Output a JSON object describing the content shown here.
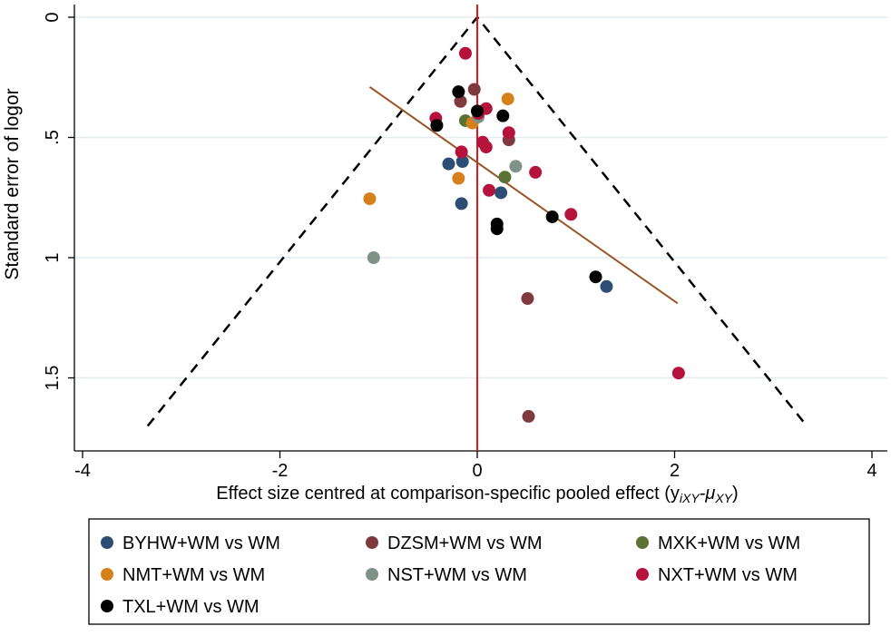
{
  "chart_data": {
    "type": "scatter",
    "title": "",
    "xlabel": "Effect size centred at comparison-specific pooled effect (y",
    "xlabel_sub": "iXY",
    "xlabel_tail": "-μ",
    "xlabel_sub2": "XY",
    "xlabel_close": ")",
    "ylabel": "Standard error of logor",
    "xlim": [
      -4,
      4
    ],
    "ylim": [
      0,
      1.75
    ],
    "y_reversed": true,
    "xticks": [
      -4,
      -2,
      0,
      2,
      4
    ],
    "xtick_labels": [
      "-4",
      "-2",
      "0",
      "2",
      "4"
    ],
    "yticks": [
      0,
      0.5,
      1,
      1.5
    ],
    "ytick_labels": [
      "0",
      ".5",
      "1",
      "1.5"
    ],
    "grid": "horizontal",
    "reference_line_x": 0,
    "funnel": {
      "apex": [
        0,
        0
      ],
      "bottom_se": 1.7,
      "left_x": -3.34,
      "right_x": 3.34
    },
    "regression_line": [
      [
        -1.09,
        0.29
      ],
      [
        2.03,
        1.19
      ]
    ],
    "legend_position": "bottom",
    "series": [
      {
        "name": "BYHW+WM vs WM",
        "color": "#2e4d74",
        "points": [
          [
            -0.29,
            0.61
          ],
          [
            -0.15,
            0.6
          ],
          [
            0.24,
            0.73
          ],
          [
            -0.16,
            0.775
          ],
          [
            1.31,
            1.12
          ]
        ]
      },
      {
        "name": "DZSM+WM vs WM",
        "color": "#7e3a3e",
        "points": [
          [
            -0.03,
            0.3
          ],
          [
            -0.17,
            0.35
          ],
          [
            0.32,
            0.51
          ],
          [
            0.51,
            1.17
          ],
          [
            0.52,
            1.66
          ]
        ]
      },
      {
        "name": "MXK+WM vs WM",
        "color": "#5a7335",
        "points": [
          [
            -0.12,
            0.43
          ],
          [
            0.28,
            0.665
          ]
        ]
      },
      {
        "name": "NMT+WM vs WM",
        "color": "#d6801c",
        "points": [
          [
            0.31,
            0.34
          ],
          [
            -0.05,
            0.44
          ],
          [
            -0.19,
            0.67
          ],
          [
            -1.09,
            0.755
          ]
        ]
      },
      {
        "name": "NST+WM vs WM",
        "color": "#7f9287",
        "points": [
          [
            0.01,
            0.415
          ],
          [
            0.39,
            0.62
          ],
          [
            -1.05,
            1.0
          ]
        ]
      },
      {
        "name": "NXT+WM vs WM",
        "color": "#b5123c",
        "points": [
          [
            -0.12,
            0.15
          ],
          [
            -0.42,
            0.42
          ],
          [
            0.09,
            0.38
          ],
          [
            0.01,
            0.4
          ],
          [
            0.32,
            0.48
          ],
          [
            0.055,
            0.52
          ],
          [
            0.09,
            0.54
          ],
          [
            -0.16,
            0.56
          ],
          [
            0.59,
            0.645
          ],
          [
            0.12,
            0.72
          ],
          [
            0.95,
            0.82
          ],
          [
            2.04,
            1.48
          ]
        ]
      },
      {
        "name": "TXL+WM vs WM",
        "color": "#000000",
        "points": [
          [
            -0.19,
            0.31
          ],
          [
            0.0,
            0.39
          ],
          [
            0.26,
            0.41
          ],
          [
            -0.41,
            0.45
          ],
          [
            0.76,
            0.83
          ],
          [
            0.2,
            0.86
          ],
          [
            0.2,
            0.88
          ],
          [
            1.2,
            1.08
          ]
        ]
      }
    ]
  }
}
